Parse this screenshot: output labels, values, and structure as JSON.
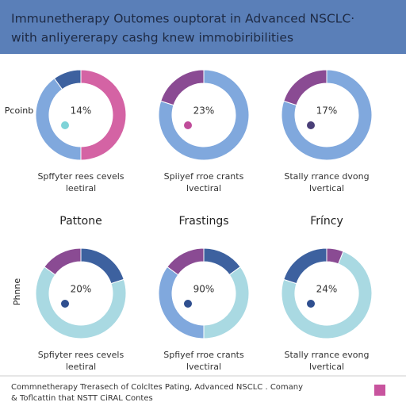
{
  "header": {
    "lines": [
      "Immunetherapy Outomes ouptorat in Advanced NSCLC·",
      "with anliyererapy  cashg knew immobiribilities"
    ]
  },
  "row_labels": [
    "Pcoinb",
    "Phnne"
  ],
  "column_titles": [
    "Pattone",
    "Frastings",
    "Fríncy"
  ],
  "footer": {
    "lines": [
      "Commnetherapy Trerasech of Colcltes Pating, Advanced NSCLC . Comany",
      "& Toflcattin that NSTT CiRAL Contes"
    ]
  },
  "chart_data": [
    {
      "type": "donut",
      "center_label": "14%",
      "values": [
        50,
        40,
        10
      ],
      "colors": [
        "#d463a4",
        "#80a8dd",
        "#3d619f"
      ],
      "marker_color": "#7ed3d8",
      "caption": [
        "Spffyter rees cevels",
        "leetiral"
      ]
    },
    {
      "type": "donut",
      "center_label": "23%",
      "values": [
        80,
        20
      ],
      "colors": [
        "#80a8dd",
        "#8a4b93"
      ],
      "marker_color": "#c04c9a",
      "caption": [
        "Spiiyef rroe crants",
        "lvectiral"
      ]
    },
    {
      "type": "donut",
      "center_label": "17%",
      "values": [
        80,
        20
      ],
      "colors": [
        "#80a8dd",
        "#8a4b93"
      ],
      "marker_color": "#4a3f78",
      "caption": [
        "Stally rrance dvong",
        "lvertical"
      ]
    },
    {
      "type": "donut",
      "center_label": "20%",
      "values": [
        20,
        65,
        15
      ],
      "colors": [
        "#3d619f",
        "#a9d9e2",
        "#8a4b93"
      ],
      "marker_color": "#2f4f8f",
      "caption": [
        "Spfiyter rees cevels",
        "leetiral"
      ]
    },
    {
      "type": "donut",
      "center_label": "90%",
      "values": [
        15,
        35,
        35,
        15
      ],
      "colors": [
        "#3d619f",
        "#a9d9e2",
        "#80a8dd",
        "#8a4b93"
      ],
      "marker_color": "#2f4f8f",
      "caption": [
        "Spfiyef rroe crants",
        "lvectiral"
      ]
    },
    {
      "type": "donut",
      "center_label": "24%",
      "values": [
        6,
        74,
        20
      ],
      "colors": [
        "#8a4b93",
        "#a9d9e2",
        "#3d619f"
      ],
      "marker_color": "#2f4f8f",
      "caption": [
        "Stally rrance evong",
        "lvertical"
      ]
    }
  ]
}
